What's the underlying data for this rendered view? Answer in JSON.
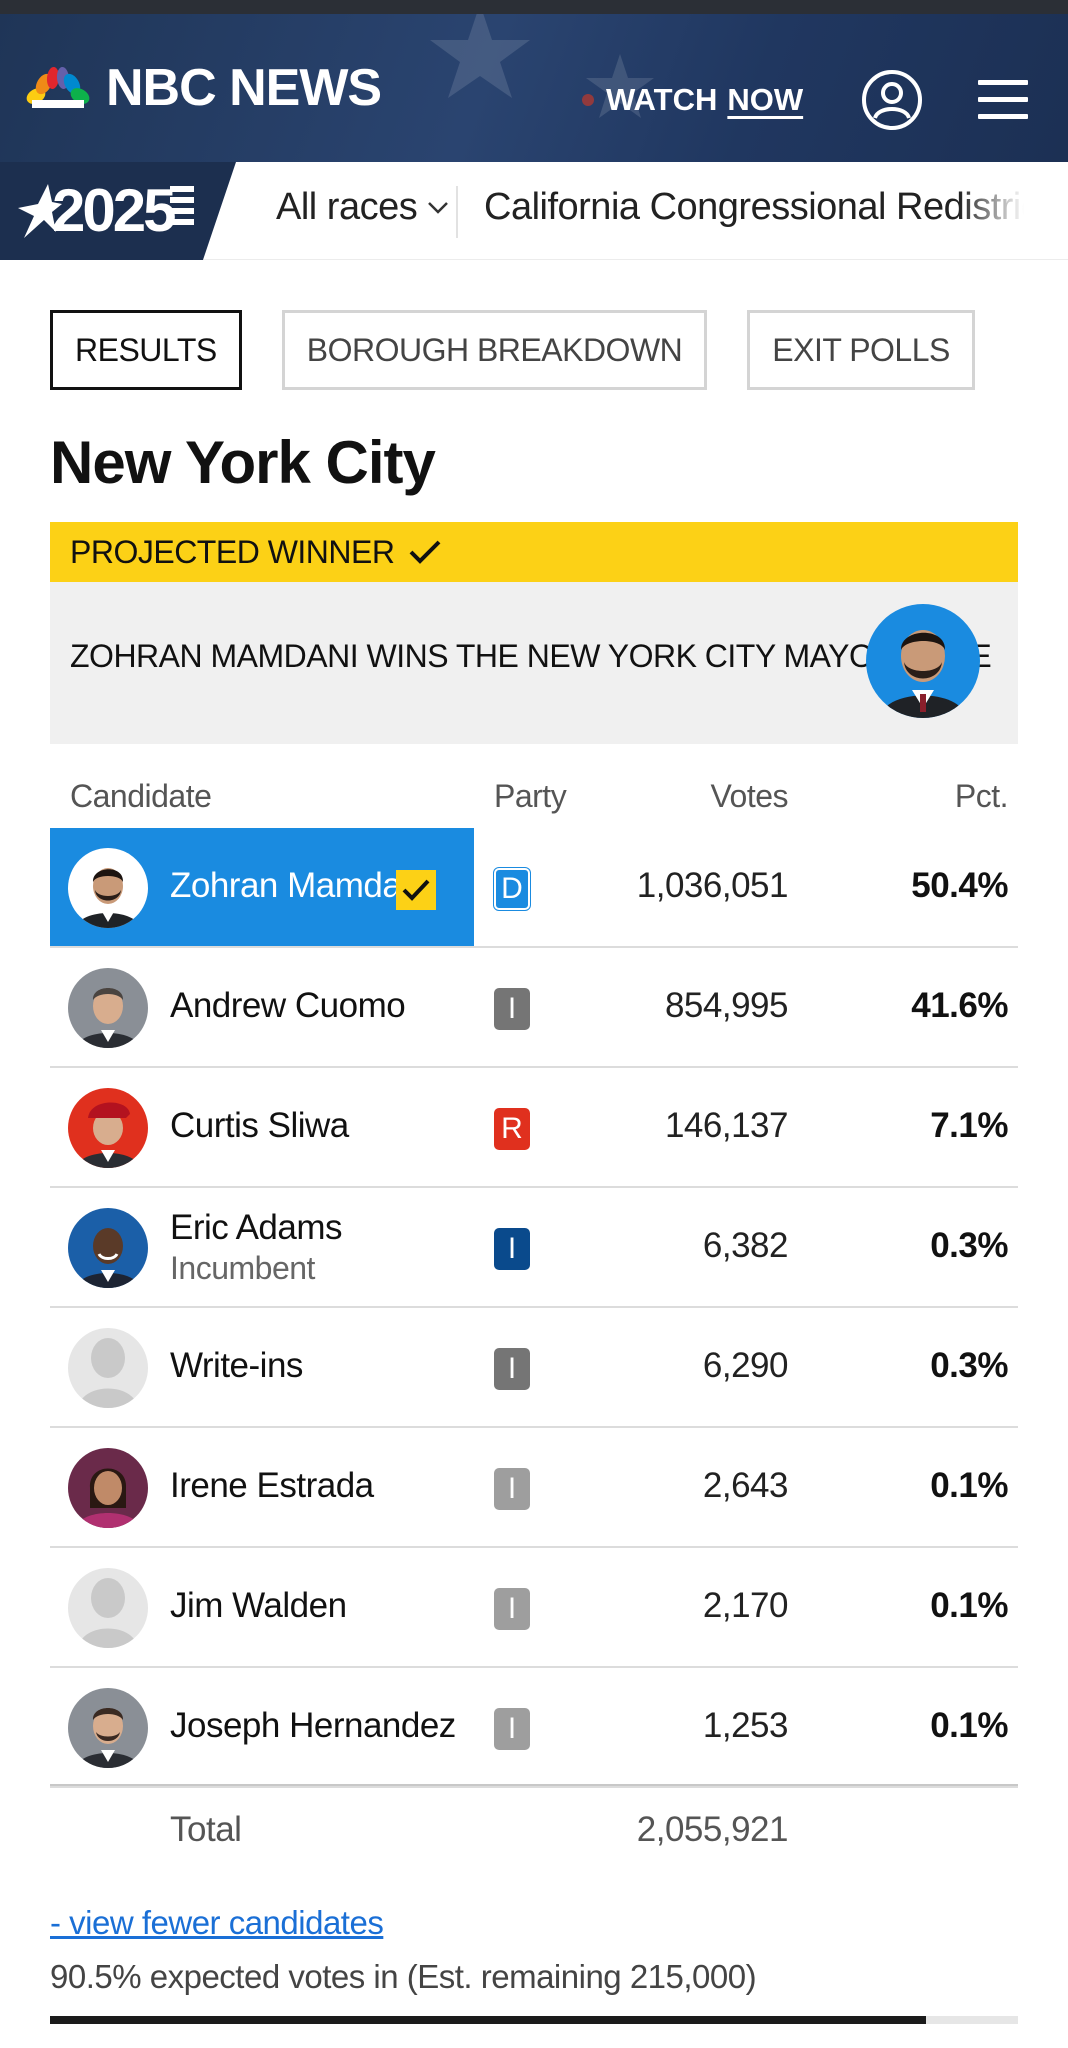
{
  "header": {
    "brand": "NBC NEWS",
    "watch_label": "WATCH",
    "watch_now": "NOW",
    "brand_colors": [
      "#fccc12",
      "#ef8a17",
      "#e1262d",
      "#6460aa",
      "#0089d0",
      "#0db14b"
    ]
  },
  "race_nav": {
    "year_badge": "2025",
    "all_races": "All races",
    "current_race": "California Congressional Redistricting"
  },
  "tabs": [
    {
      "label": "RESULTS",
      "active": true
    },
    {
      "label": "BOROUGH BREAKDOWN",
      "active": false
    },
    {
      "label": "EXIT POLLS",
      "active": false
    }
  ],
  "page_title": "New York City",
  "projection": {
    "label": "PROJECTED WINNER",
    "headline": "ZOHRAN MAMDANI WINS THE NEW YORK CITY MAYOR RACE"
  },
  "table": {
    "headers": {
      "candidate": "Candidate",
      "party": "Party",
      "votes": "Votes",
      "pct": "Pct."
    },
    "rows": [
      {
        "name": "Zohran Mamdani",
        "sub": "",
        "party": "D",
        "party_color": "#1a8be0",
        "votes": "1,036,051",
        "pct": "50.4%",
        "winner": true
      },
      {
        "name": "Andrew Cuomo",
        "sub": "",
        "party": "I",
        "party_color": "#757575",
        "votes": "854,995",
        "pct": "41.6%",
        "winner": false
      },
      {
        "name": "Curtis Sliwa",
        "sub": "",
        "party": "R",
        "party_color": "#e0301e",
        "votes": "146,137",
        "pct": "7.1%",
        "winner": false
      },
      {
        "name": "Eric Adams",
        "sub": "Incumbent",
        "party": "I",
        "party_color": "#0a4a8c",
        "votes": "6,382",
        "pct": "0.3%",
        "winner": false
      },
      {
        "name": "Write-ins",
        "sub": "",
        "party": "I",
        "party_color": "#757575",
        "votes": "6,290",
        "pct": "0.3%",
        "winner": false
      },
      {
        "name": "Irene Estrada",
        "sub": "",
        "party": "I",
        "party_color": "#9e9e9e",
        "votes": "2,643",
        "pct": "0.1%",
        "winner": false
      },
      {
        "name": "Jim Walden",
        "sub": "",
        "party": "I",
        "party_color": "#9e9e9e",
        "votes": "2,170",
        "pct": "0.1%",
        "winner": false
      },
      {
        "name": "Joseph Hernandez",
        "sub": "",
        "party": "I",
        "party_color": "#9e9e9e",
        "votes": "1,253",
        "pct": "0.1%",
        "winner": false
      }
    ],
    "total_label": "Total",
    "total_votes": "2,055,921"
  },
  "footer": {
    "fewer_link": "- view fewer candidates",
    "expected_text": "90.5% expected votes in (Est. remaining 215,000)",
    "expected_fraction": 0.905
  }
}
